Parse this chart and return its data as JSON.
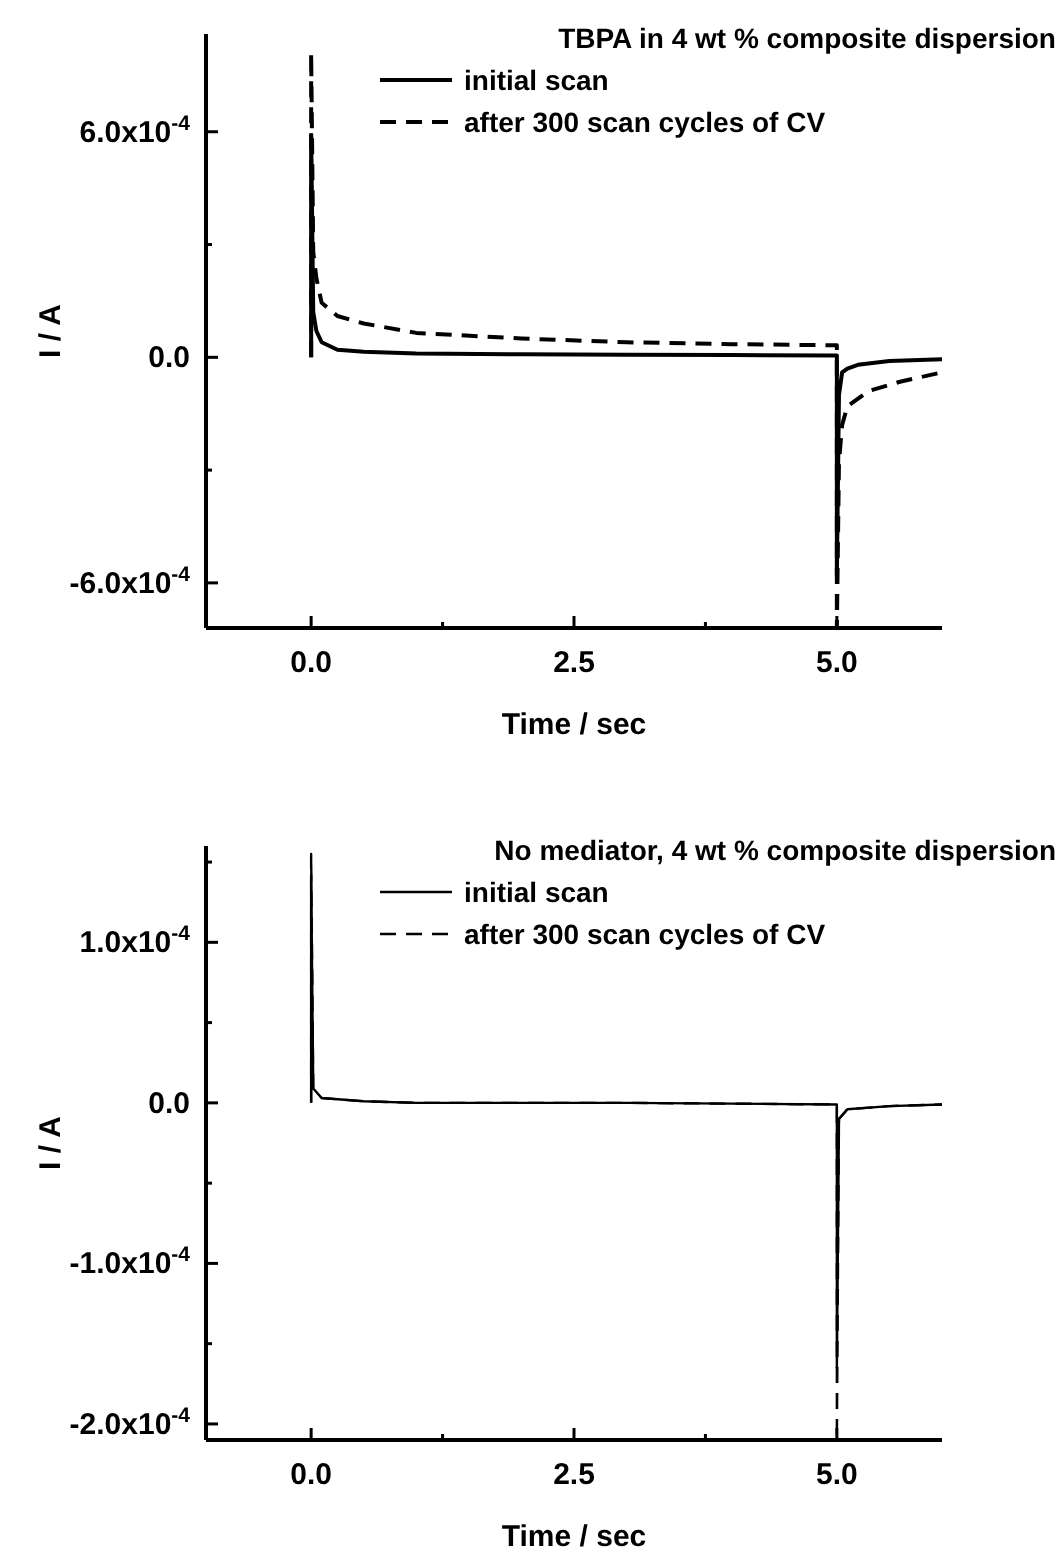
{
  "chart_data": [
    {
      "type": "line",
      "legend_title": "TBPA in 4 wt % composite dispersion",
      "xlabel": "Time / sec",
      "ylabel": "I / A",
      "xlim": [
        -1,
        6
      ],
      "ylim": [
        -0.00072,
        0.00086
      ],
      "xticks": [
        {
          "value": 0,
          "label": "0.0"
        },
        {
          "value": 1.25,
          "label": null
        },
        {
          "value": 2.5,
          "label": "2.5"
        },
        {
          "value": 3.75,
          "label": null
        },
        {
          "value": 5,
          "label": "5.0"
        }
      ],
      "yticks": [
        {
          "value": -0.0006,
          "label": "-6.0x10$^{-4}$"
        },
        {
          "value": -0.0003,
          "label": null
        },
        {
          "value": 0,
          "label": "0.0"
        },
        {
          "value": 0.0003,
          "label": null
        },
        {
          "value": 0.0006,
          "label": "6.0x10$^{-4}$"
        }
      ],
      "legend": "top right",
      "grid": false,
      "marker": "none",
      "series": [
        {
          "name": "initial scan",
          "color": "#000000",
          "line_style": "solid",
          "x": [
            0,
            0,
            0.02,
            0.05,
            0.1,
            0.25,
            0.5,
            1,
            2,
            3,
            4,
            4.99,
            5,
            5,
            5.02,
            5.05,
            5.1,
            5.2,
            5.5,
            6
          ],
          "values": [
            0,
            0.00059,
            0.00012,
            7e-05,
            4e-05,
            2e-05,
            1.5e-05,
            1e-05,
            8e-06,
            7e-06,
            6e-06,
            5e-06,
            5e-06,
            -0.00058,
            -0.0001,
            -4e-05,
            -3e-05,
            -2e-05,
            -1e-05,
            -5e-06
          ]
        },
        {
          "name": "after 300 scan cycles of CV",
          "color": "#000000",
          "line_style": "dashed",
          "x": [
            0,
            0,
            0.02,
            0.05,
            0.1,
            0.25,
            0.5,
            1,
            2,
            3,
            4,
            4.99,
            5,
            5,
            5.02,
            5.05,
            5.1,
            5.3,
            5.6,
            6
          ],
          "values": [
            0,
            0.00081,
            0.00028,
            0.00021,
            0.000145,
            0.00011,
            9e-05,
            6.5e-05,
            5e-05,
            4e-05,
            3.5e-05,
            3.2e-05,
            3.2e-05,
            -0.00072,
            -0.00028,
            -0.00018,
            -0.00013,
            -9e-05,
            -6.5e-05,
            -4e-05
          ]
        }
      ]
    },
    {
      "type": "line",
      "legend_title": "No mediator, 4 wt % composite dispersion",
      "xlabel": "Time / sec",
      "ylabel": "I / A",
      "xlim": [
        -1,
        6
      ],
      "ylim": [
        -0.00021,
        0.00016
      ],
      "xticks": [
        {
          "value": 0,
          "label": "0.0"
        },
        {
          "value": 1.25,
          "label": null
        },
        {
          "value": 2.5,
          "label": "2.5"
        },
        {
          "value": 3.75,
          "label": null
        },
        {
          "value": 5,
          "label": "5.0"
        }
      ],
      "yticks": [
        {
          "value": -0.0002,
          "label": "-2.0x10$^{-4}$"
        },
        {
          "value": -0.00015,
          "label": null
        },
        {
          "value": -0.0001,
          "label": "-1.0x10$^{-4}$"
        },
        {
          "value": -5e-05,
          "label": null
        },
        {
          "value": 0,
          "label": "0.0"
        },
        {
          "value": 5e-05,
          "label": null
        },
        {
          "value": 0.0001,
          "label": "1.0x10$^{-4}$"
        },
        {
          "value": 0.00015,
          "label": null
        }
      ],
      "legend": "top right",
      "grid": false,
      "marker": "none",
      "series": [
        {
          "name": "initial scan",
          "color": "#000000",
          "line_style": "solid",
          "x": [
            0,
            0,
            0.02,
            0.1,
            0.5,
            1,
            3,
            4.99,
            5,
            5,
            5.02,
            5.1,
            5.5,
            6
          ],
          "values": [
            0,
            0.000142,
            9e-06,
            3e-06,
            1e-06,
            0,
            0,
            -1e-06,
            -1e-06,
            -0.000165,
            -1e-05,
            -4e-06,
            -2e-06,
            -1e-06
          ]
        },
        {
          "name": "after 300 scan cycles of CV",
          "color": "#000000",
          "line_style": "dashed",
          "x": [
            0,
            0,
            0.02,
            0.1,
            0.5,
            1,
            3,
            4.99,
            5,
            5,
            5.02,
            5.1,
            5.5,
            6
          ],
          "values": [
            0,
            0.000155,
            9e-06,
            3e-06,
            1e-06,
            0,
            0,
            -1e-06,
            -1e-06,
            -0.00021,
            -1e-05,
            -4e-06,
            -2e-06,
            -1e-06
          ]
        }
      ]
    }
  ]
}
